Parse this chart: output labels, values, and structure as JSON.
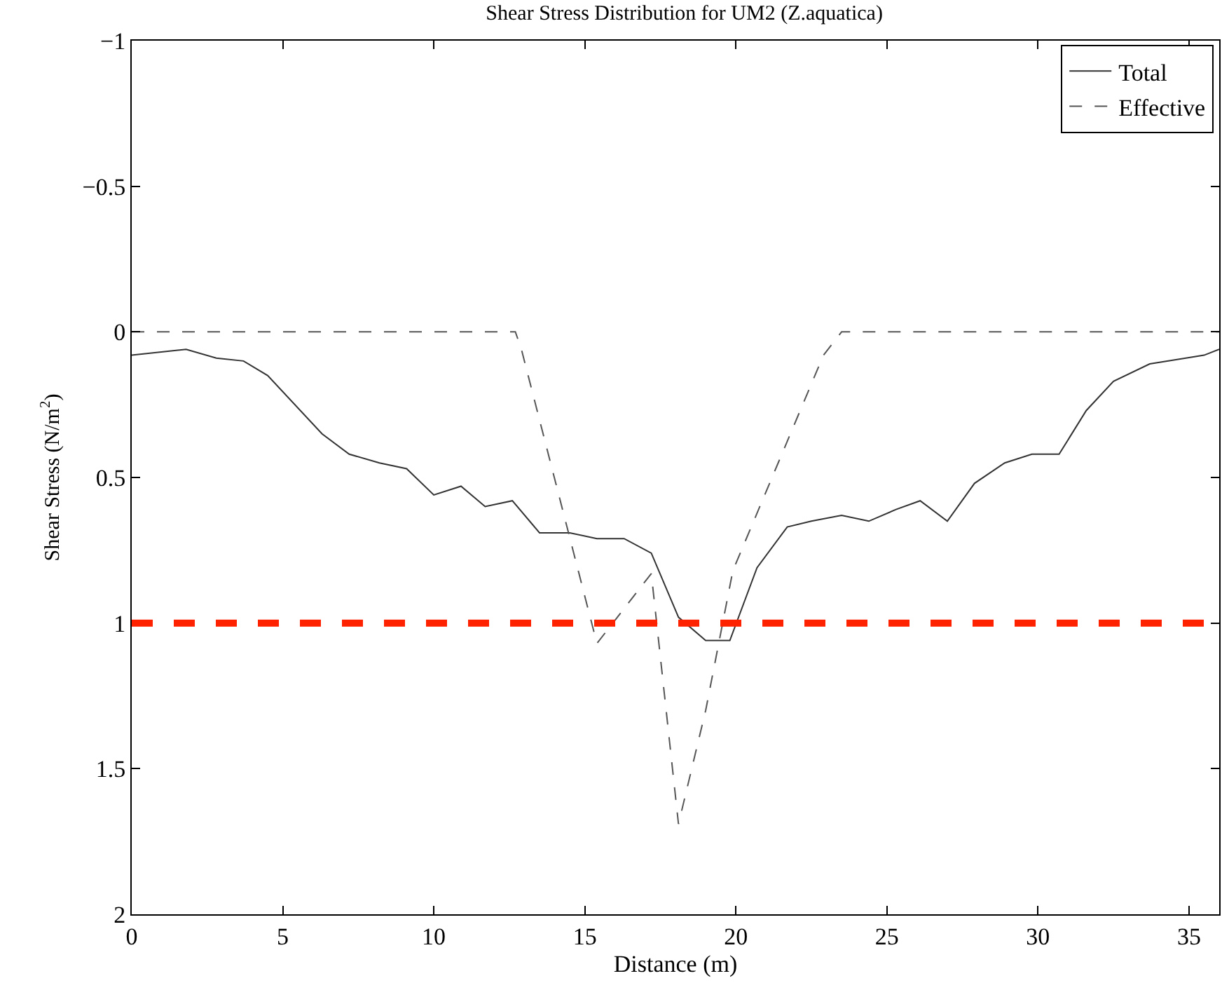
{
  "chart_data": {
    "type": "line",
    "title": "Shear Stress Distribution for UM2 (Z.aquatica)",
    "xlabel": "Distance (m)",
    "ylabel": "Shear Stress (N/m$^{2}$)",
    "xlim": [
      0,
      36
    ],
    "xticks": [
      0,
      5,
      10,
      15,
      20,
      25,
      30,
      35
    ],
    "ylim": [
      2,
      -1
    ],
    "yticks": [
      {
        "value": -1,
        "label": "−1"
      },
      {
        "value": -0.5,
        "label": "−0.5"
      },
      0,
      0.5,
      1,
      1.5,
      2
    ],
    "legend": "top right",
    "marker": "none",
    "series": [
      {
        "name": "Total",
        "color": "#333333",
        "line_style": "solid",
        "x": [
          0,
          1.8,
          2.8,
          3.7,
          4.5,
          6.3,
          7.2,
          8.2,
          9.1,
          10.0,
          10.9,
          11.7,
          12.6,
          13.5,
          14.5,
          15.4,
          16.3,
          17.2,
          18.1,
          19.0,
          19.8,
          20.7,
          21.7,
          22.5,
          23.5,
          24.4,
          25.3,
          26.1,
          27.0,
          27.9,
          28.9,
          29.8,
          30.7,
          31.6,
          32.5,
          33.7,
          35.5,
          36
        ],
        "values": [
          0.08,
          0.06,
          0.09,
          0.1,
          0.15,
          0.35,
          0.42,
          0.45,
          0.47,
          0.56,
          0.53,
          0.6,
          0.58,
          0.69,
          0.69,
          0.71,
          0.71,
          0.76,
          0.98,
          1.06,
          1.06,
          0.81,
          0.67,
          0.65,
          0.63,
          0.65,
          0.61,
          0.58,
          0.65,
          0.52,
          0.45,
          0.42,
          0.42,
          0.27,
          0.17,
          0.11,
          0.08,
          0.06
        ]
      },
      {
        "name": "Effective",
        "color": "#555555",
        "line_style": "dashed",
        "x": [
          0,
          12.7,
          12.9,
          15.4,
          17.2,
          18.1,
          19.0,
          19.9,
          21.4,
          22.9,
          23.5,
          36
        ],
        "values": [
          0,
          0,
          0.06,
          1.07,
          0.83,
          1.69,
          1.3,
          0.82,
          0.45,
          0.08,
          0,
          0
        ]
      }
    ],
    "ref_lines": [
      {
        "axis": "y",
        "value": 1,
        "color": "#ff2200",
        "line_style": "dashed"
      }
    ]
  }
}
